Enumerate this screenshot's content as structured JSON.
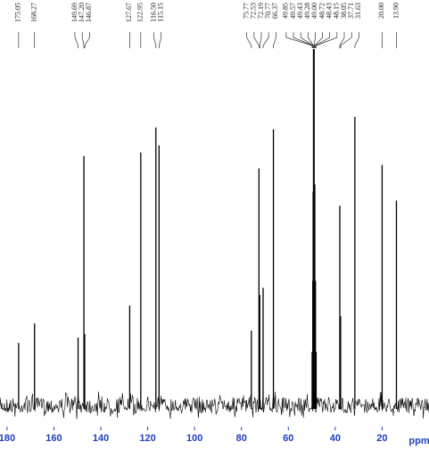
{
  "chart_data": {
    "type": "spectrum",
    "x_label": "ppm",
    "xlim": [
      183,
      0
    ],
    "ylim": [
      0,
      100
    ],
    "xticks": [
      180,
      160,
      140,
      120,
      100,
      80,
      60,
      40,
      20
    ],
    "color": "#000000",
    "tick_color": "#1f3fbf",
    "x": [
      175.05,
      168.27,
      149.69,
      147.2,
      146.87,
      127.67,
      122.95,
      116.5,
      115.15,
      75.77,
      72.53,
      72.19,
      70.77,
      66.37,
      49.85,
      49.57,
      49.43,
      49.28,
      49.0,
      48.72,
      48.43,
      48.15,
      38.05,
      37.71,
      31.63,
      20.0,
      13.9
    ],
    "x_labels": [
      "175.05",
      "168.27",
      "149.69",
      "147.20",
      "146.87",
      "127.67",
      "122.95",
      "116.50",
      "115.15",
      "75.77",
      "72.53",
      "72.19",
      "70.77",
      "66.37",
      "49.85",
      "49.57",
      "49.43",
      "49.28",
      "49.00",
      "48.72",
      "48.43",
      "48.15",
      "38.05",
      "37.71",
      "31.63",
      "20.00",
      "13.90"
    ],
    "values": [
      17.5,
      23,
      19,
      70,
      20,
      28,
      71,
      78,
      73,
      21,
      66.5,
      31,
      33,
      77.5,
      15,
      35,
      60,
      100,
      100,
      62,
      35,
      15,
      56,
      25,
      81,
      67.5,
      57.5
    ]
  }
}
